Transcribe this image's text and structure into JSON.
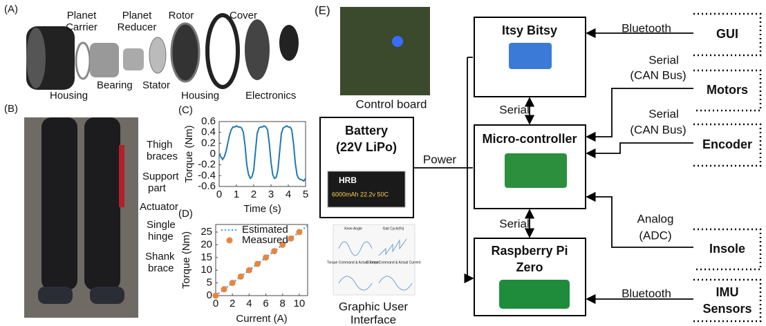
{
  "figure": {
    "a": {
      "label": "(A)",
      "planet_carrier": [
        "Planet",
        "Carrier"
      ],
      "planet_reducer": [
        "Planet",
        "Reducer"
      ],
      "rotor": "Rotor",
      "cover": "Cover",
      "housing_left": "Housing",
      "bearing": "Bearing",
      "stator": "Stator",
      "housing_right": "Housing",
      "electronics": "Electronics"
    },
    "b": {
      "label": "(B)",
      "thigh_braces": [
        "Thigh",
        "braces"
      ],
      "support_part": [
        "Support",
        "part"
      ],
      "actuator": "Actuator",
      "single_hinge": [
        "Single",
        "hinge"
      ],
      "shank_brace": [
        "Shank",
        "brace"
      ]
    },
    "e": {
      "label": "(E)",
      "control_board": "Control board",
      "battery": [
        "Battery",
        "(22V LiPo)"
      ],
      "battery_brand": "HRB",
      "battery_spec": "6000mAh 22.2v 50C",
      "power": "Power",
      "gui_plots": [
        "Knee Angle",
        "Gait Cycle(%)",
        "Torque Command & Actual Torque",
        "Current Command & Actual Current"
      ],
      "gui_caption": [
        "Graphic User",
        "Interface"
      ],
      "itsy_bitsy": "Itsy Bitsy",
      "microcontroller": "Micro-controller",
      "raspberry_pi": [
        "Raspberry Pi",
        "Zero"
      ],
      "serial_top": "Serial",
      "serial_bottom": "Serial",
      "bluetooth_gui": "Bluetooth",
      "serial_can_motors": [
        "Serial",
        "(CAN Bus)"
      ],
      "serial_can_encoder": [
        "Serial",
        "(CAN Bus)"
      ],
      "analog": [
        "Analog",
        "(ADC)"
      ],
      "bluetooth_imu": "Bluetooth",
      "gui": "GUI",
      "motors": "Motors",
      "encoder": "Encoder",
      "insole": "Insole",
      "imu": [
        "IMU",
        "Sensors"
      ]
    }
  },
  "chart_data": [
    {
      "type": "line",
      "panel": "(C)",
      "x_label": "Time (s)",
      "y_label": "Torque (Nm)",
      "color": "#1f77b4",
      "x": [
        0,
        0.1,
        0.2,
        0.3,
        0.4,
        0.5,
        0.6,
        0.7,
        0.8,
        0.9,
        1,
        1.1,
        1.2,
        1.3,
        1.4,
        1.5,
        1.6,
        1.7,
        1.8,
        1.9,
        2,
        2.1,
        2.2,
        2.3,
        2.4,
        2.5,
        2.6,
        2.7,
        2.8,
        2.9,
        3,
        3.1,
        3.2,
        3.3,
        3.4,
        3.5,
        3.6,
        3.7,
        3.8,
        3.9,
        4,
        4.1,
        4.2,
        4.3,
        4.4,
        4.5,
        4.6,
        4.7,
        4.8,
        4.9,
        5
      ],
      "values": [
        0,
        -0.05,
        -0.1,
        -0.05,
        0.05,
        0.2,
        0.35,
        0.45,
        0.5,
        0.5,
        0.52,
        0.5,
        0.5,
        0.48,
        0.4,
        0.15,
        -0.2,
        -0.38,
        -0.45,
        -0.42,
        -0.3,
        0.05,
        0.38,
        0.48,
        0.5,
        0.5,
        0.52,
        0.5,
        0.45,
        0.2,
        -0.15,
        -0.38,
        -0.45,
        -0.43,
        -0.3,
        0.05,
        0.38,
        0.48,
        0.5,
        0.52,
        0.5,
        0.5,
        0.45,
        0.2,
        -0.15,
        -0.38,
        -0.45,
        -0.47,
        -0.48,
        -0.5,
        -0.45
      ],
      "xlim": [
        0,
        5
      ],
      "ylim": [
        -0.6,
        0.6
      ],
      "xticks": [
        0,
        1,
        2,
        3,
        4,
        5
      ],
      "yticks": [
        0.6,
        0.4,
        0.2,
        0,
        -0.2,
        -0.4,
        -0.6
      ]
    },
    {
      "type": "line",
      "panel": "(D)",
      "x_label": "Current (A)",
      "y_label": "Torque (Nm)",
      "legend": "upper left",
      "series": [
        {
          "name": "Estimated",
          "color": "#4da6e8",
          "style": "dotted",
          "x": [
            0,
            11
          ],
          "values": [
            0,
            27.5
          ]
        },
        {
          "name": "Measured",
          "color": "#e9843f",
          "marker": "circle",
          "x": [
            0,
            1,
            2,
            3,
            4,
            5,
            6,
            7,
            8,
            9,
            10
          ],
          "values": [
            0,
            2.5,
            5,
            7.5,
            10,
            12.5,
            15,
            17.5,
            20,
            22.5,
            25
          ]
        }
      ],
      "xlim": [
        0,
        11
      ],
      "ylim": [
        0,
        28
      ],
      "xticks": [
        0,
        2,
        4,
        6,
        8,
        10
      ],
      "yticks": [
        0,
        5,
        10,
        15,
        20,
        25
      ]
    }
  ]
}
